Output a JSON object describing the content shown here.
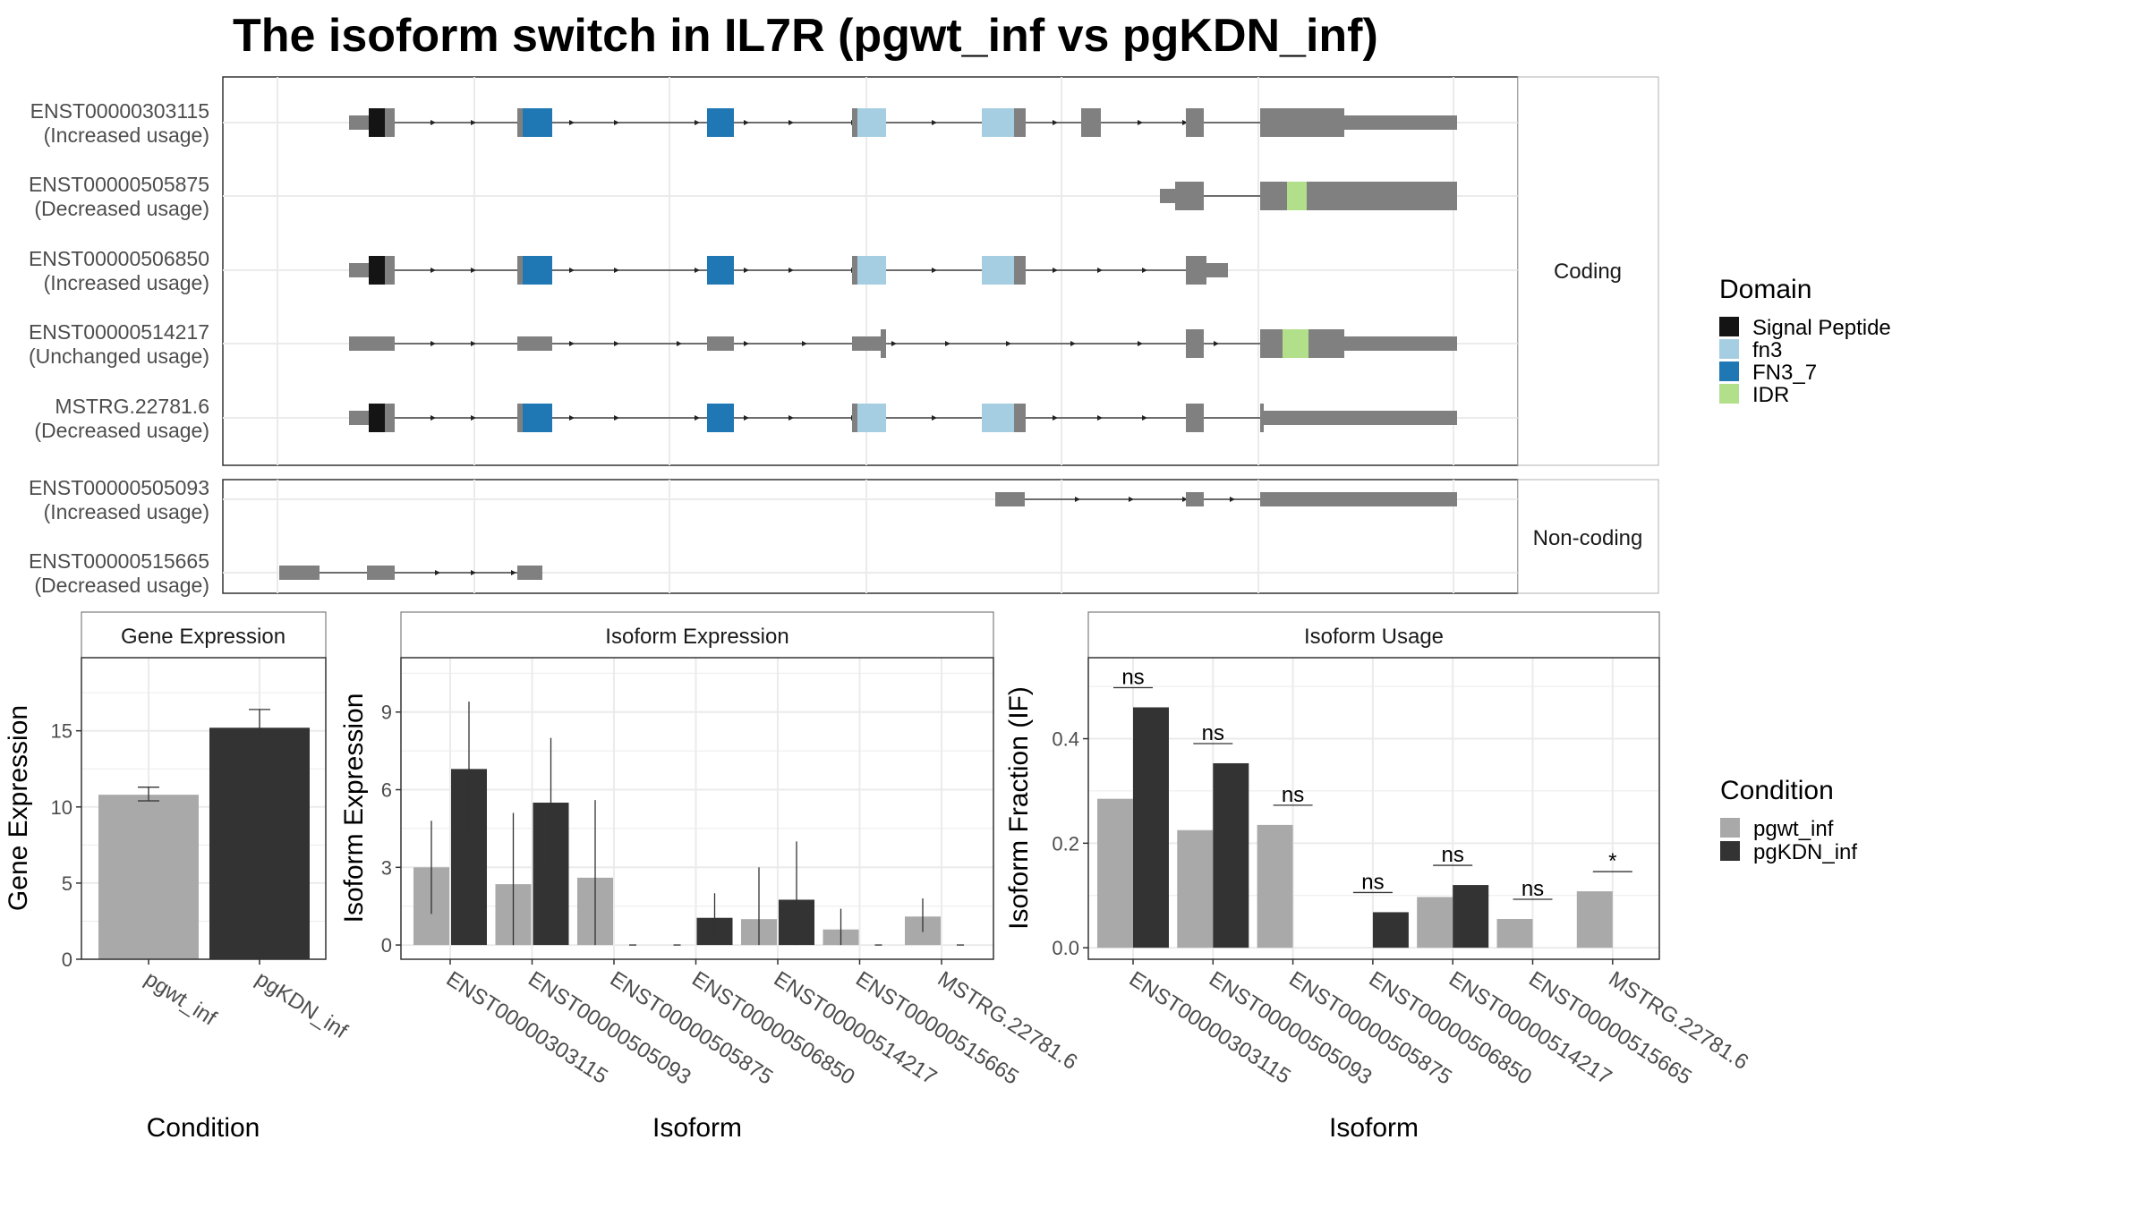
{
  "title": "The isoform switch in IL7R (pgwt_inf vs pgKDN_inf)",
  "colors": {
    "signal_peptide": "#141414",
    "fn3": "#a6cee3",
    "fn3_7": "#1f78b4",
    "idr": "#b2df8a",
    "exon": "#808080",
    "pgwt_inf": "#a9a9a9",
    "pgKDN_inf": "#333333",
    "grid": "#ebebeb",
    "strip": "#f2f2f2"
  },
  "transcript_panel": {
    "coding_label": "Coding",
    "noncoding_label": "Non-coding",
    "coding": [
      {
        "id": "ENST00000303115",
        "status": "(Increased usage)"
      },
      {
        "id": "ENST00000505875",
        "status": "(Decreased usage)"
      },
      {
        "id": "ENST00000506850",
        "status": "(Increased usage)"
      },
      {
        "id": "ENST00000514217",
        "status": "(Unchanged usage)"
      },
      {
        "id": "MSTRG.22781.6",
        "status": "(Decreased usage)"
      }
    ],
    "noncoding": [
      {
        "id": "ENST00000505093",
        "status": "(Increased usage)"
      },
      {
        "id": "ENST00000515665",
        "status": "(Decreased usage)"
      }
    ]
  },
  "legend_domain": {
    "title": "Domain",
    "items": [
      {
        "label": "Signal Peptide",
        "color": "#141414"
      },
      {
        "label": "fn3",
        "color": "#a6cee3"
      },
      {
        "label": "FN3_7",
        "color": "#1f78b4"
      },
      {
        "label": "IDR",
        "color": "#b2df8a"
      }
    ]
  },
  "legend_condition": {
    "title": "Condition",
    "items": [
      {
        "label": "pgwt_inf",
        "color": "#a9a9a9"
      },
      {
        "label": "pgKDN_inf",
        "color": "#333333"
      }
    ]
  },
  "chart_data": [
    {
      "type": "bar",
      "panel": "Gene Expression",
      "xlabel": "Condition",
      "ylabel": "Gene Expression",
      "categories": [
        "pgwt_inf",
        "pgKDN_inf"
      ],
      "values": [
        10.8,
        15.2
      ],
      "errors": [
        [
          10.4,
          11.3
        ],
        [
          14.1,
          16.4
        ]
      ],
      "ylim": [
        0,
        19.8
      ],
      "yticks": [
        0,
        5,
        10,
        15
      ],
      "grid": true
    },
    {
      "type": "bar",
      "panel": "Isoform Expression",
      "xlabel": "Isoform",
      "ylabel": "Isoform Expression",
      "categories": [
        "ENST00000303115",
        "ENST00000505093",
        "ENST00000505875",
        "ENST00000506850",
        "ENST00000514217",
        "ENST00000515665",
        "MSTRG.22781.6"
      ],
      "series": [
        {
          "name": "pgwt_inf",
          "values": [
            3.0,
            2.35,
            2.6,
            0.0,
            1.0,
            0.6,
            1.1
          ],
          "errors": [
            [
              1.2,
              4.8
            ],
            [
              0.0,
              5.1
            ],
            [
              0.0,
              5.6
            ],
            [
              0.0,
              0.0
            ],
            [
              0.0,
              3.0
            ],
            [
              0.0,
              1.4
            ],
            [
              0.5,
              1.8
            ]
          ]
        },
        {
          "name": "pgKDN_inf",
          "values": [
            6.8,
            5.5,
            0.0,
            1.05,
            1.75,
            0.0,
            0.0
          ],
          "errors": [
            [
              4.3,
              9.4
            ],
            [
              3.0,
              8.0
            ],
            [
              0.0,
              0.0
            ],
            [
              0.2,
              2.0
            ],
            [
              0.0,
              4.0
            ],
            [
              0.0,
              0.0
            ],
            [
              0.0,
              0.0
            ]
          ]
        }
      ],
      "ylim": [
        -0.55,
        11.1
      ],
      "yticks": [
        0,
        3,
        6,
        9
      ],
      "grid": true
    },
    {
      "type": "bar",
      "panel": "Isoform Usage",
      "xlabel": "Isoform",
      "ylabel": "Isoform Fraction (IF)",
      "categories": [
        "ENST00000303115",
        "ENST00000505093",
        "ENST00000505875",
        "ENST00000506850",
        "ENST00000514217",
        "ENST00000515665",
        "MSTRG.22781.6"
      ],
      "series": [
        {
          "name": "pgwt_inf",
          "values": [
            0.285,
            0.225,
            0.235,
            0.0,
            0.097,
            0.055,
            0.108
          ]
        },
        {
          "name": "pgKDN_inf",
          "values": [
            0.46,
            0.353,
            0.0,
            0.068,
            0.12,
            0.0,
            0.0
          ]
        }
      ],
      "significance": [
        "ns",
        "ns",
        "ns",
        "ns",
        "ns",
        "ns",
        "*"
      ],
      "ylim": [
        -0.022,
        0.555
      ],
      "yticks": [
        0.0,
        0.2,
        0.4
      ],
      "grid": true
    }
  ]
}
